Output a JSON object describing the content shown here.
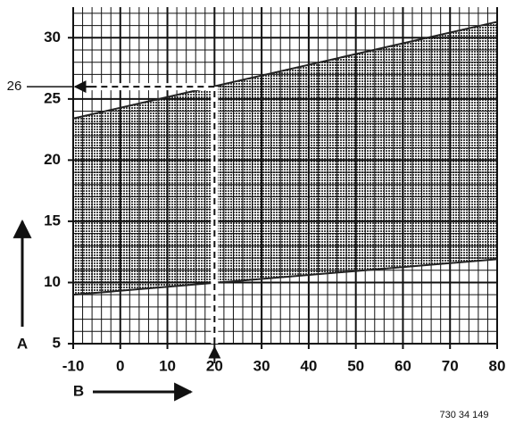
{
  "chart_data": {
    "type": "range",
    "x": [
      -10,
      80
    ],
    "upper": [
      23.4,
      31.3
    ],
    "lower": [
      9.0,
      11.9
    ],
    "xlim": [
      -10,
      80
    ],
    "xticks": [
      -10,
      0,
      10,
      20,
      30,
      40,
      50,
      60,
      70,
      80
    ],
    "ylim": [
      5,
      32.5
    ],
    "yticks": [
      5,
      10,
      15,
      20,
      25,
      30
    ],
    "grid": true,
    "minor_grid": {
      "x": 2,
      "y": 1
    },
    "color": "#222",
    "xlabel": "B",
    "ylabel": "A",
    "annotation": {
      "x": 20,
      "y": 26
    },
    "footnote": "730 34 149"
  }
}
